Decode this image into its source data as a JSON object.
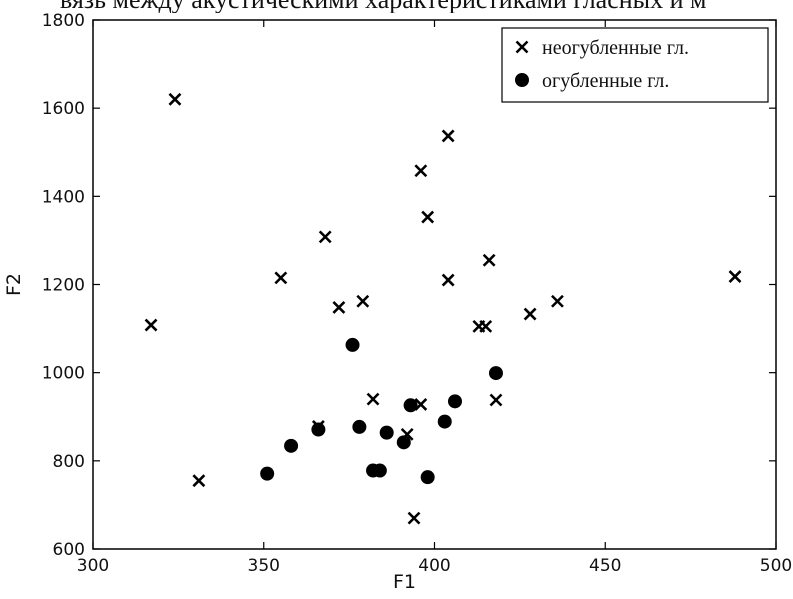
{
  "caption_fragment": "вязь между акустическими характеристиками гласных и м",
  "chart_data": {
    "type": "scatter",
    "title": "",
    "xlabel": "F1",
    "ylabel": "F2",
    "xlim": [
      300,
      500
    ],
    "ylim": [
      600,
      1800
    ],
    "xticks": [
      300,
      350,
      400,
      450,
      500
    ],
    "yticks": [
      600,
      800,
      1000,
      1200,
      1400,
      1600,
      1800
    ],
    "grid": false,
    "legend_position": "top-right",
    "series": [
      {
        "name": "неогубленные гл.",
        "marker": "x",
        "color": "#000000",
        "points": [
          {
            "x": 324,
            "y": 1620
          },
          {
            "x": 317,
            "y": 1108
          },
          {
            "x": 331,
            "y": 755
          },
          {
            "x": 355,
            "y": 1215
          },
          {
            "x": 368,
            "y": 1308
          },
          {
            "x": 372,
            "y": 1148
          },
          {
            "x": 379,
            "y": 1162
          },
          {
            "x": 366,
            "y": 878
          },
          {
            "x": 382,
            "y": 940
          },
          {
            "x": 392,
            "y": 860
          },
          {
            "x": 394,
            "y": 670
          },
          {
            "x": 396,
            "y": 928
          },
          {
            "x": 396,
            "y": 1458
          },
          {
            "x": 398,
            "y": 1353
          },
          {
            "x": 404,
            "y": 1537
          },
          {
            "x": 404,
            "y": 1210
          },
          {
            "x": 413,
            "y": 1105
          },
          {
            "x": 415,
            "y": 1105
          },
          {
            "x": 416,
            "y": 1255
          },
          {
            "x": 418,
            "y": 938
          },
          {
            "x": 428,
            "y": 1133
          },
          {
            "x": 436,
            "y": 1162
          },
          {
            "x": 488,
            "y": 1218
          }
        ]
      },
      {
        "name": "огубленные гл.",
        "marker": "o",
        "color": "#000000",
        "points": [
          {
            "x": 351,
            "y": 771
          },
          {
            "x": 358,
            "y": 834
          },
          {
            "x": 366,
            "y": 871
          },
          {
            "x": 376,
            "y": 1063
          },
          {
            "x": 378,
            "y": 877
          },
          {
            "x": 382,
            "y": 778
          },
          {
            "x": 384,
            "y": 778
          },
          {
            "x": 386,
            "y": 864
          },
          {
            "x": 391,
            "y": 842
          },
          {
            "x": 393,
            "y": 926
          },
          {
            "x": 398,
            "y": 763
          },
          {
            "x": 403,
            "y": 889
          },
          {
            "x": 406,
            "y": 935
          },
          {
            "x": 418,
            "y": 999
          }
        ]
      }
    ]
  }
}
